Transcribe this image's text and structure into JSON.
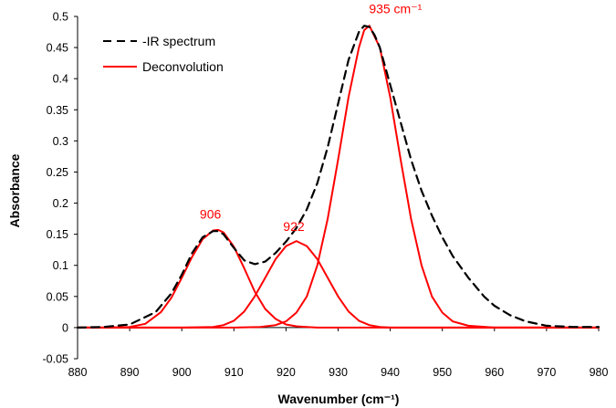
{
  "chart_data": {
    "type": "line",
    "xlabel": "Wavenumber (cm⁻¹)",
    "ylabel": "Absorbance",
    "xlim": [
      880,
      980
    ],
    "ylim": [
      -0.05,
      0.5
    ],
    "x_ticks": [
      "880",
      "890",
      "900",
      "910",
      "920",
      "930",
      "940",
      "950",
      "960",
      "970",
      "980"
    ],
    "y_ticks": [
      "-0.05",
      "0",
      "0.05",
      "0.1",
      "0.15",
      "0.2",
      "0.25",
      "0.3",
      "0.35",
      "0.4",
      "0.45",
      "0.5"
    ],
    "grid": false,
    "legend_position": "top-left",
    "legend": [
      {
        "label": "-IR spectrum",
        "color": "#000000",
        "dash": "dashed"
      },
      {
        "label": "Deconvolution",
        "color": "#ff0000",
        "dash": "solid"
      }
    ],
    "series": [
      {
        "name": "-IR spectrum",
        "color": "#000000",
        "x": [
          880,
          885,
          890,
          895,
          898,
          900,
          902,
          904,
          906,
          907,
          908,
          910,
          912,
          914,
          916,
          918,
          920,
          922,
          924,
          926,
          928,
          930,
          932,
          934,
          935,
          936,
          937,
          938,
          940,
          942,
          944,
          946,
          948,
          950,
          952,
          955,
          958,
          960,
          963,
          966,
          970,
          975,
          980
        ],
        "values": [
          0,
          0.001,
          0.005,
          0.025,
          0.055,
          0.085,
          0.12,
          0.145,
          0.155,
          0.155,
          0.15,
          0.128,
          0.108,
          0.102,
          0.106,
          0.12,
          0.138,
          0.16,
          0.19,
          0.232,
          0.29,
          0.36,
          0.43,
          0.475,
          0.485,
          0.483,
          0.47,
          0.45,
          0.39,
          0.33,
          0.27,
          0.22,
          0.18,
          0.145,
          0.115,
          0.08,
          0.05,
          0.035,
          0.02,
          0.01,
          0.003,
          0.001,
          0.001
        ]
      },
      {
        "name": "906",
        "color": "#ff0000",
        "x": [
          880,
          885,
          890,
          893,
          896,
          898,
          900,
          902,
          904,
          906,
          907,
          908,
          910,
          912,
          914,
          916,
          918,
          920,
          922,
          924,
          926,
          928,
          930,
          940,
          960,
          980
        ],
        "values": [
          0,
          0,
          0.001,
          0.006,
          0.025,
          0.048,
          0.08,
          0.114,
          0.142,
          0.156,
          0.157,
          0.153,
          0.13,
          0.095,
          0.058,
          0.03,
          0.014,
          0.005,
          0.002,
          0.001,
          0,
          0,
          0,
          0,
          0,
          0
        ]
      },
      {
        "name": "922",
        "color": "#ff0000",
        "x": [
          880,
          900,
          906,
          908,
          910,
          912,
          914,
          916,
          918,
          920,
          922,
          924,
          926,
          928,
          930,
          932,
          934,
          936,
          938,
          940,
          950,
          980
        ],
        "values": [
          0,
          0,
          0.001,
          0.004,
          0.011,
          0.026,
          0.05,
          0.08,
          0.11,
          0.131,
          0.139,
          0.131,
          0.11,
          0.08,
          0.05,
          0.026,
          0.011,
          0.004,
          0.001,
          0,
          0,
          0
        ]
      },
      {
        "name": "935 cm⁻¹",
        "color": "#ff0000",
        "x": [
          880,
          910,
          915,
          918,
          920,
          922,
          924,
          926,
          928,
          930,
          932,
          934,
          935,
          936,
          938,
          940,
          942,
          944,
          946,
          948,
          950,
          952,
          955,
          960,
          980
        ],
        "values": [
          0,
          0,
          0.001,
          0.004,
          0.01,
          0.024,
          0.05,
          0.1,
          0.175,
          0.27,
          0.37,
          0.45,
          0.478,
          0.485,
          0.45,
          0.37,
          0.27,
          0.175,
          0.1,
          0.05,
          0.024,
          0.01,
          0.003,
          0,
          0
        ]
      }
    ],
    "annotations": [
      {
        "text": "906",
        "x": 905.5,
        "y": 0.175,
        "color": "#ff0000"
      },
      {
        "text": "922",
        "x": 921.5,
        "y": 0.155,
        "color": "#ff0000"
      },
      {
        "text": "935 cm⁻¹",
        "x": 941,
        "y": 0.505,
        "color": "#ff0000"
      }
    ]
  }
}
